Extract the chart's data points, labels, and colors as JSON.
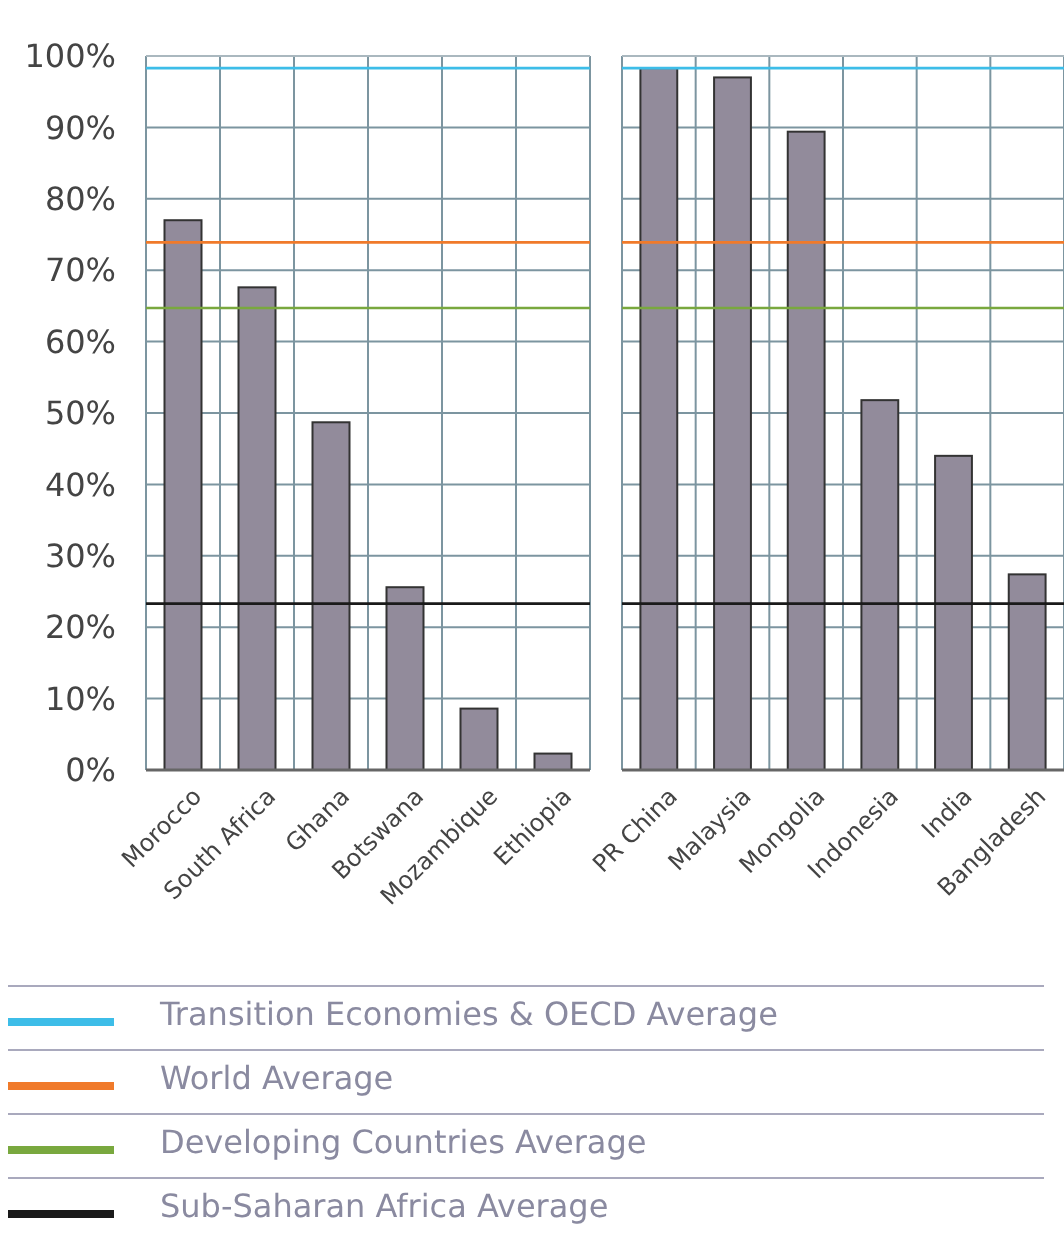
{
  "chart_data": [
    {
      "type": "bar",
      "categories": [
        "Morocco",
        "South Africa",
        "Ghana",
        "Botswana",
        "Mozambique",
        "Ethiopia"
      ],
      "values": [
        77.0,
        67.6,
        48.7,
        25.6,
        8.6,
        2.3
      ],
      "color": "#928b9b",
      "ylim": [
        0,
        100
      ],
      "yticks": [
        {
          "value": 0,
          "label": "0%"
        },
        {
          "value": 10,
          "label": "10%"
        },
        {
          "value": 20,
          "label": "20%"
        },
        {
          "value": 30,
          "label": "30%"
        },
        {
          "value": 40,
          "label": "40%"
        },
        {
          "value": 50,
          "label": "50%"
        },
        {
          "value": 60,
          "label": "60%"
        },
        {
          "value": 70,
          "label": "70%"
        },
        {
          "value": 80,
          "label": "80%"
        },
        {
          "value": 90,
          "label": "90%"
        },
        {
          "value": 100,
          "label": "100%"
        }
      ],
      "grid": true,
      "legend": "bottom",
      "ref_lines": [
        {
          "axis": "y",
          "value": 98.3,
          "label": "Transition Economies & OECD Average",
          "color": "#3dbde8"
        },
        {
          "axis": "y",
          "value": 73.9,
          "label": "World Average",
          "color": "#f07a2a"
        },
        {
          "axis": "y",
          "value": 64.7,
          "label": "Developing Countries Average",
          "color": "#79a83e"
        },
        {
          "axis": "y",
          "value": 23.3,
          "label": "Sub-Saharan Africa Average",
          "color": "#1a1a1a"
        }
      ]
    },
    {
      "type": "bar",
      "categories": [
        "PR China",
        "Malaysia",
        "Mongolia",
        "Indonesia",
        "India",
        "Bangladesh"
      ],
      "values": [
        98.3,
        97.0,
        89.4,
        51.8,
        44.0,
        27.4
      ],
      "color": "#928b9b",
      "ylim": [
        0,
        100
      ],
      "yticks": [
        0,
        10,
        20,
        30,
        40,
        50,
        60,
        70,
        80,
        90,
        100
      ],
      "grid": true,
      "tick_labels": "x",
      "ref_lines": [
        {
          "axis": "y",
          "value": 98.3,
          "color": "#3dbde8"
        },
        {
          "axis": "y",
          "value": 73.9,
          "color": "#f07a2a"
        },
        {
          "axis": "y",
          "value": 64.7,
          "color": "#79a83e"
        },
        {
          "axis": "y",
          "value": 23.3,
          "color": "#1a1a1a"
        }
      ]
    }
  ]
}
